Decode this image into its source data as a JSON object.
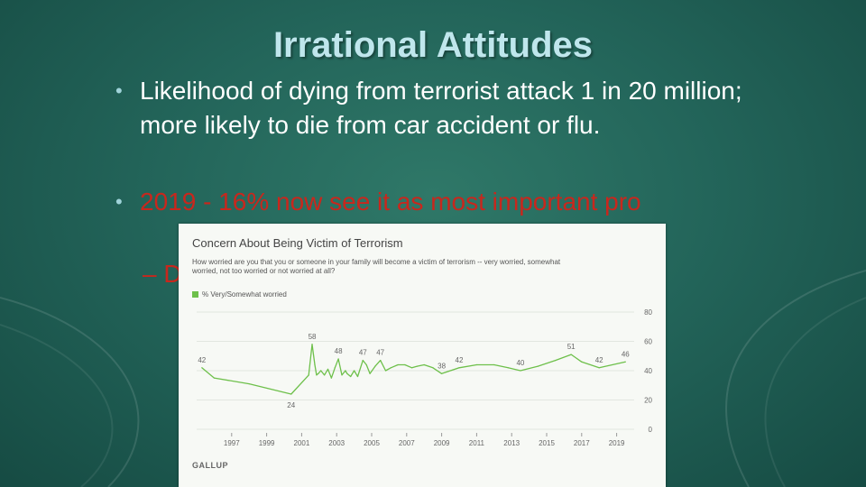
{
  "slide": {
    "title": "Irrational Attitudes",
    "bullets": [
      {
        "symbol": "•",
        "text": "Likelihood of dying from terrorist attack 1 in 20 million; more likely to die from car accident or flu."
      },
      {
        "symbol": "•",
        "text": "2019 - 16% now see it as most important pro"
      }
    ],
    "sub_bullet": "– D"
  },
  "colors": {
    "title": "#bfe6ec",
    "accent_red": "#c8271d",
    "line": "#6ec04b"
  },
  "chart_data": {
    "type": "line",
    "title": "Concern About Being Victim of Terrorism",
    "subtitle": "How worried are you that you or someone in your family will become a victim of terrorism -- very worried, somewhat worried, not too worried or not worried at all?",
    "legend": {
      "position": "top-left",
      "entries": [
        "% Very/Somewhat worried"
      ]
    },
    "source": "GALLUP",
    "x_ticks": [
      "1997",
      "1999",
      "2001",
      "2003",
      "2005",
      "2007",
      "2009",
      "2011",
      "2013",
      "2015",
      "2017",
      "2019"
    ],
    "y_ticks": [
      0,
      20,
      40,
      60,
      80
    ],
    "ylim": [
      0,
      80
    ],
    "xlim": [
      1995,
      2020
    ],
    "grid": true,
    "series": [
      {
        "name": "% Very/Somewhat worried",
        "x": [
          1995.3,
          1996.0,
          1998.0,
          2000.4,
          2001.4,
          2001.6,
          2001.75,
          2001.85,
          2001.95,
          2002.1,
          2002.3,
          2002.5,
          2002.7,
          2002.9,
          2003.1,
          2003.3,
          2003.5,
          2003.6,
          2003.8,
          2004.0,
          2004.2,
          2004.5,
          2004.7,
          2004.9,
          2005.2,
          2005.5,
          2005.8,
          2006.1,
          2006.5,
          2006.9,
          2007.3,
          2007.6,
          2008.0,
          2008.5,
          2009.0,
          2010.0,
          2011.0,
          2012.0,
          2012.8,
          2013.5,
          2014.5,
          2015.5,
          2016.4,
          2017.0,
          2018.0,
          2019.5
        ],
        "values": [
          42,
          35,
          31,
          24,
          37,
          58,
          44,
          37,
          38,
          40,
          37,
          41,
          35,
          42,
          48,
          37,
          40,
          38,
          36,
          40,
          36,
          47,
          44,
          38,
          43,
          47,
          40,
          42,
          44,
          44,
          42,
          43,
          44,
          42,
          38,
          42,
          44,
          44,
          42,
          40,
          43,
          47,
          51,
          46,
          42,
          46
        ]
      }
    ],
    "data_labels": [
      {
        "x": 1995.3,
        "y": 42,
        "text": "42"
      },
      {
        "x": 2000.4,
        "y": 24,
        "text": "24",
        "pos": "below"
      },
      {
        "x": 2001.6,
        "y": 58,
        "text": "58"
      },
      {
        "x": 2003.1,
        "y": 48,
        "text": "48"
      },
      {
        "x": 2004.5,
        "y": 47,
        "text": "47"
      },
      {
        "x": 2005.5,
        "y": 47,
        "text": "47"
      },
      {
        "x": 2009.0,
        "y": 38,
        "text": "38"
      },
      {
        "x": 2010.0,
        "y": 42,
        "text": "42"
      },
      {
        "x": 2013.5,
        "y": 40,
        "text": "40"
      },
      {
        "x": 2016.4,
        "y": 51,
        "text": "51"
      },
      {
        "x": 2018.0,
        "y": 42,
        "text": "42"
      },
      {
        "x": 2019.5,
        "y": 46,
        "text": "46"
      }
    ]
  }
}
